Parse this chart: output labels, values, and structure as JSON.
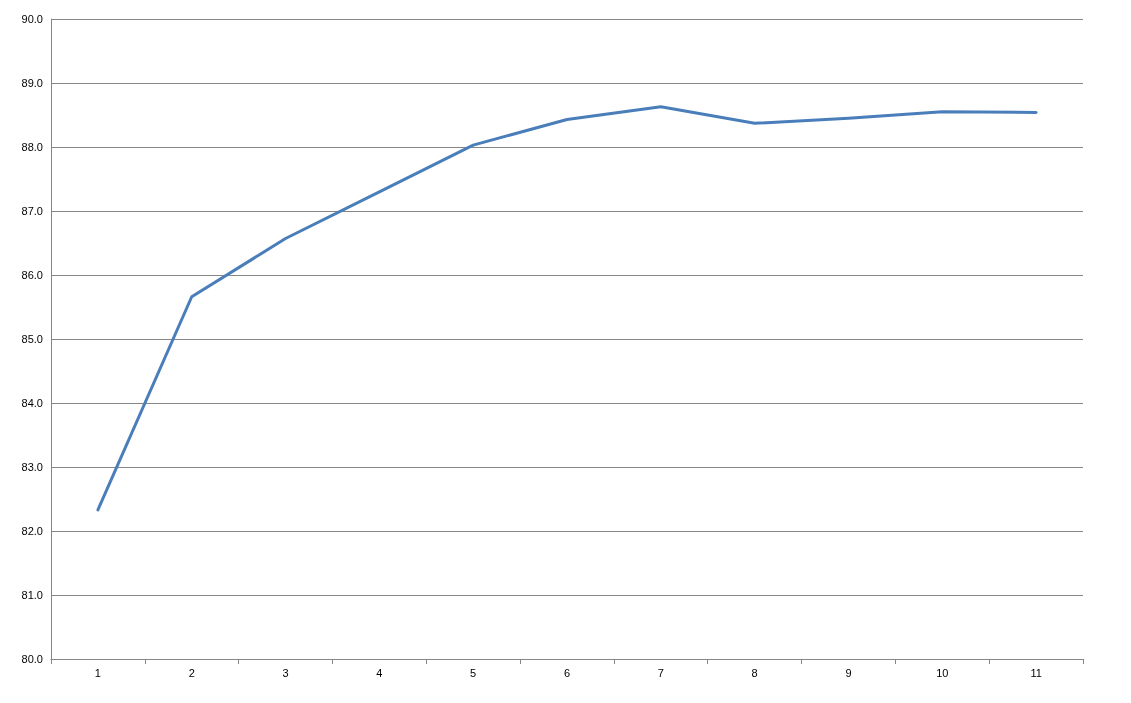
{
  "chart_data": {
    "type": "line",
    "categories": [
      "1",
      "2",
      "3",
      "4",
      "5",
      "6",
      "7",
      "8",
      "9",
      "10",
      "11"
    ],
    "series": [
      {
        "color": "#4a7ebb",
        "values": [
          82.33,
          85.66,
          86.57,
          87.3,
          88.03,
          88.43,
          88.63,
          88.37,
          88.45,
          88.55,
          88.54
        ]
      }
    ],
    "ylim": [
      80,
      90
    ],
    "yticks": [
      {
        "value": 80,
        "label": "80.0"
      },
      {
        "value": 81,
        "label": "81.0"
      },
      {
        "value": 82,
        "label": "82.0"
      },
      {
        "value": 83,
        "label": "83.0"
      },
      {
        "value": 84,
        "label": "84.0"
      },
      {
        "value": 85,
        "label": "85.0"
      },
      {
        "value": 86,
        "label": "86.0"
      },
      {
        "value": 87,
        "label": "87.0"
      },
      {
        "value": 88,
        "label": "88.0"
      },
      {
        "value": 89,
        "label": "89.0"
      },
      {
        "value": 90,
        "label": "90.0"
      }
    ],
    "grid": "y",
    "marker": "none",
    "line_style": "solid"
  }
}
